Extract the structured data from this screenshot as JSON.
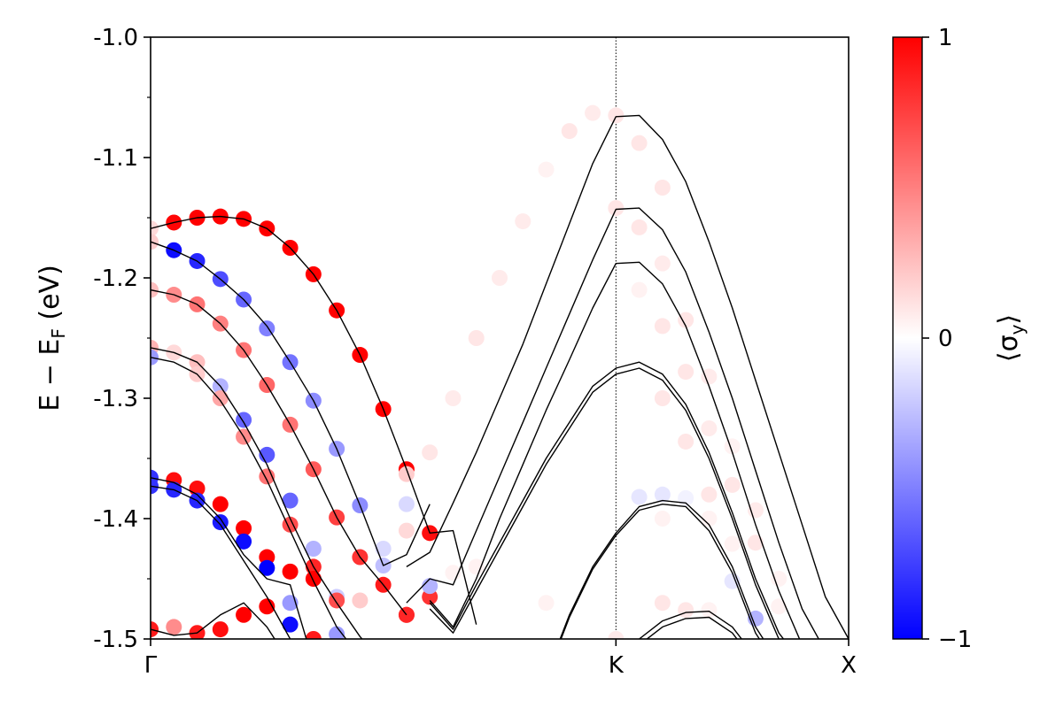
{
  "chart_data": {
    "type": "scatter",
    "ylabel": "E − E_F (eV)",
    "ylabel_main": "E − E",
    "ylabel_sub": "F",
    "ylabel_unit": " (eV)",
    "ylim": [
      -1.5,
      -1.0
    ],
    "xlim": [
      0,
      30
    ],
    "yticks": [
      -1.0,
      -1.1,
      -1.2,
      -1.3,
      -1.4,
      -1.5
    ],
    "ytick_labels": [
      "-1.0",
      "-1.1",
      "-1.2",
      "-1.3",
      "-1.4",
      "-1.5"
    ],
    "xticks": [
      {
        "label": "Γ",
        "x": 0
      },
      {
        "label": "K",
        "x": 20
      },
      {
        "label": "X",
        "x": 30
      }
    ],
    "kpoint_line_x": 20,
    "colorbar": {
      "label": "⟨σ_y⟩",
      "label_text": "⟨σ",
      "label_sub": "y",
      "label_close": "⟩",
      "min": -1,
      "max": 1,
      "ticks": [
        {
          "value": 1,
          "label": "1"
        },
        {
          "value": 0,
          "label": "0"
        },
        {
          "value": -1,
          "label": "−1"
        }
      ],
      "colors": {
        "negative": "#0000ff",
        "zero": "#ffffff",
        "positive": "#ff0000"
      }
    },
    "bands": [
      {
        "x": [
          0,
          1,
          2,
          3,
          4,
          5,
          6,
          7,
          8,
          9,
          10,
          11,
          12,
          13,
          14
        ],
        "y": [
          -1.159,
          -1.154,
          -1.15,
          -1.149,
          -1.151,
          -1.159,
          -1.175,
          -1.197,
          -1.227,
          -1.264,
          -1.309,
          -1.359,
          -1.412,
          -1.41,
          -1.488
        ]
      },
      {
        "x": [
          0,
          1,
          2,
          3,
          4,
          5,
          6,
          7,
          8,
          9,
          10,
          11,
          12
        ],
        "y": [
          -1.17,
          -1.177,
          -1.186,
          -1.201,
          -1.218,
          -1.24,
          -1.27,
          -1.302,
          -1.342,
          -1.389,
          -1.439,
          -1.43,
          -1.388
        ]
      },
      {
        "x": [
          0,
          1,
          2,
          3,
          4,
          5,
          6,
          7,
          8,
          9,
          10,
          11
        ],
        "y": [
          -1.21,
          -1.214,
          -1.222,
          -1.238,
          -1.26,
          -1.289,
          -1.322,
          -1.359,
          -1.399,
          -1.432,
          -1.455,
          -1.48
        ]
      },
      {
        "x": [
          0,
          1,
          2,
          3,
          4,
          5,
          6,
          7,
          8,
          9,
          10
        ],
        "y": [
          -1.258,
          -1.262,
          -1.27,
          -1.29,
          -1.32,
          -1.355,
          -1.4,
          -1.44,
          -1.47,
          -1.498,
          -1.52
        ]
      },
      {
        "x": [
          0,
          1,
          2,
          3,
          4,
          5,
          6,
          7,
          8,
          9,
          10
        ],
        "y": [
          -1.266,
          -1.27,
          -1.28,
          -1.302,
          -1.332,
          -1.368,
          -1.41,
          -1.452,
          -1.49,
          -1.515,
          -1.53
        ]
      },
      {
        "x": [
          0,
          1,
          2,
          3,
          4,
          5,
          6,
          7
        ],
        "y": [
          -1.366,
          -1.37,
          -1.38,
          -1.4,
          -1.43,
          -1.45,
          -1.455,
          -1.52
        ]
      },
      {
        "x": [
          0,
          1,
          2,
          3,
          4,
          5,
          6
        ],
        "y": [
          -1.373,
          -1.376,
          -1.385,
          -1.405,
          -1.435,
          -1.465,
          -1.5
        ]
      },
      {
        "x": [
          0,
          1,
          2,
          3,
          4,
          5,
          6
        ],
        "y": [
          -1.492,
          -1.497,
          -1.495,
          -1.48,
          -1.47,
          -1.49,
          -1.52
        ]
      },
      {
        "x": [
          0,
          1,
          2,
          3
        ],
        "y": [
          -1.5,
          -1.505,
          -1.515,
          -1.525
        ]
      },
      {
        "x": [
          11,
          12,
          13,
          14,
          15,
          16,
          17,
          18,
          19,
          20,
          21,
          22,
          23,
          24,
          25,
          26,
          27,
          28,
          29,
          30
        ],
        "y": [
          -1.44,
          -1.428,
          -1.387,
          -1.345,
          -1.3,
          -1.255,
          -1.205,
          -1.155,
          -1.105,
          -1.066,
          -1.065,
          -1.085,
          -1.12,
          -1.17,
          -1.225,
          -1.285,
          -1.345,
          -1.405,
          -1.465,
          -1.5
        ]
      },
      {
        "x": [
          11,
          12,
          13,
          14,
          15,
          16,
          17,
          18,
          19,
          20,
          21,
          22,
          23,
          24,
          25,
          26,
          27,
          28,
          29,
          30
        ],
        "y": [
          -1.47,
          -1.45,
          -1.455,
          -1.41,
          -1.365,
          -1.32,
          -1.275,
          -1.23,
          -1.185,
          -1.143,
          -1.142,
          -1.16,
          -1.195,
          -1.245,
          -1.3,
          -1.36,
          -1.42,
          -1.475,
          -1.51,
          -1.53
        ]
      },
      {
        "x": [
          12,
          13,
          14,
          15,
          16,
          17,
          18,
          19,
          20,
          21,
          22,
          23,
          24,
          25,
          26,
          27,
          28,
          29,
          30
        ],
        "y": [
          -1.468,
          -1.49,
          -1.45,
          -1.4,
          -1.355,
          -1.31,
          -1.268,
          -1.225,
          -1.188,
          -1.187,
          -1.205,
          -1.24,
          -1.29,
          -1.345,
          -1.405,
          -1.46,
          -1.505,
          -1.53,
          -1.54
        ]
      },
      {
        "x": [
          12,
          13,
          14,
          15,
          16,
          17,
          18,
          19,
          20,
          21,
          22,
          23,
          24,
          25,
          26,
          27,
          28,
          29,
          30
        ],
        "y": [
          -1.47,
          -1.492,
          -1.455,
          -1.42,
          -1.385,
          -1.35,
          -1.32,
          -1.29,
          -1.275,
          -1.27,
          -1.28,
          -1.305,
          -1.345,
          -1.395,
          -1.45,
          -1.495,
          -1.52,
          -1.54,
          -1.55
        ]
      },
      {
        "x": [
          12,
          13,
          14,
          15,
          16,
          17,
          18,
          19,
          20,
          21,
          22,
          23,
          24,
          25,
          26,
          27,
          28,
          29,
          30
        ],
        "y": [
          -1.475,
          -1.495,
          -1.46,
          -1.425,
          -1.39,
          -1.355,
          -1.325,
          -1.295,
          -1.28,
          -1.275,
          -1.285,
          -1.31,
          -1.35,
          -1.4,
          -1.455,
          -1.5,
          -1.525,
          -1.545,
          -1.555
        ]
      },
      {
        "x": [
          17,
          18,
          19,
          20,
          21,
          22,
          23,
          24,
          25,
          26,
          27,
          28
        ],
        "y": [
          -1.53,
          -1.48,
          -1.44,
          -1.412,
          -1.39,
          -1.385,
          -1.387,
          -1.405,
          -1.44,
          -1.49,
          -1.52,
          -1.54
        ]
      },
      {
        "x": [
          17,
          18,
          19,
          20,
          21,
          22,
          23,
          24,
          25,
          26,
          27,
          28
        ],
        "y": [
          -1.532,
          -1.482,
          -1.442,
          -1.414,
          -1.393,
          -1.388,
          -1.39,
          -1.41,
          -1.445,
          -1.495,
          -1.525,
          -1.545
        ]
      },
      {
        "x": [
          21,
          22,
          23,
          24,
          25,
          26,
          27
        ],
        "y": [
          -1.5,
          -1.485,
          -1.478,
          -1.477,
          -1.49,
          -1.515,
          -1.53
        ]
      },
      {
        "x": [
          21,
          22,
          23,
          24,
          25,
          26,
          27
        ],
        "y": [
          -1.505,
          -1.49,
          -1.483,
          -1.482,
          -1.495,
          -1.52,
          -1.535
        ]
      },
      {
        "x": [
          7,
          8,
          9,
          10
        ],
        "y": [
          -1.5,
          -1.53,
          -1.54,
          -1.545
        ]
      }
    ],
    "points": [
      {
        "x": 0,
        "y": -1.159,
        "s": 0.15
      },
      {
        "x": 1,
        "y": -1.154,
        "s": 0.98
      },
      {
        "x": 2,
        "y": -1.15,
        "s": 1.0
      },
      {
        "x": 3,
        "y": -1.149,
        "s": 1.0
      },
      {
        "x": 4,
        "y": -1.151,
        "s": 1.0
      },
      {
        "x": 5,
        "y": -1.159,
        "s": 1.0
      },
      {
        "x": 6,
        "y": -1.175,
        "s": 1.0
      },
      {
        "x": 7,
        "y": -1.197,
        "s": 1.0
      },
      {
        "x": 8,
        "y": -1.227,
        "s": 1.0
      },
      {
        "x": 9,
        "y": -1.264,
        "s": 1.0
      },
      {
        "x": 10,
        "y": -1.309,
        "s": 1.0
      },
      {
        "x": 11,
        "y": -1.359,
        "s": 1.0
      },
      {
        "x": 12,
        "y": -1.412,
        "s": 0.95
      },
      {
        "x": 0,
        "y": -1.17,
        "s": 0.2
      },
      {
        "x": 1,
        "y": -1.177,
        "s": -0.95
      },
      {
        "x": 2,
        "y": -1.186,
        "s": -0.85
      },
      {
        "x": 3,
        "y": -1.201,
        "s": -0.7
      },
      {
        "x": 4,
        "y": -1.218,
        "s": -0.6
      },
      {
        "x": 5,
        "y": -1.242,
        "s": -0.5
      },
      {
        "x": 6,
        "y": -1.27,
        "s": -0.55
      },
      {
        "x": 7,
        "y": -1.302,
        "s": -0.45
      },
      {
        "x": 8,
        "y": -1.342,
        "s": -0.4
      },
      {
        "x": 9,
        "y": -1.389,
        "s": -0.45
      },
      {
        "x": 10,
        "y": -1.439,
        "s": -0.25
      },
      {
        "x": 11,
        "y": -1.388,
        "s": -0.15
      },
      {
        "x": 0,
        "y": -1.21,
        "s": 0.25
      },
      {
        "x": 1,
        "y": -1.214,
        "s": 0.45
      },
      {
        "x": 2,
        "y": -1.222,
        "s": 0.55
      },
      {
        "x": 3,
        "y": -1.238,
        "s": 0.5
      },
      {
        "x": 4,
        "y": -1.26,
        "s": 0.55
      },
      {
        "x": 5,
        "y": -1.289,
        "s": 0.6
      },
      {
        "x": 6,
        "y": -1.322,
        "s": 0.55
      },
      {
        "x": 7,
        "y": -1.359,
        "s": 0.65
      },
      {
        "x": 8,
        "y": -1.399,
        "s": 0.75
      },
      {
        "x": 9,
        "y": -1.432,
        "s": 0.8
      },
      {
        "x": 10,
        "y": -1.455,
        "s": 0.9
      },
      {
        "x": 11,
        "y": -1.48,
        "s": 0.9
      },
      {
        "x": 0,
        "y": -1.258,
        "s": 0.3
      },
      {
        "x": 0,
        "y": -1.266,
        "s": -0.4
      },
      {
        "x": 1,
        "y": -1.262,
        "s": 0.15
      },
      {
        "x": 2,
        "y": -1.27,
        "s": 0.25
      },
      {
        "x": 3,
        "y": -1.29,
        "s": -0.3
      },
      {
        "x": 4,
        "y": -1.318,
        "s": -0.6
      },
      {
        "x": 5,
        "y": -1.347,
        "s": -0.65
      },
      {
        "x": 6,
        "y": -1.385,
        "s": -0.6
      },
      {
        "x": 7,
        "y": -1.425,
        "s": -0.3
      },
      {
        "x": 8,
        "y": -1.465,
        "s": -0.2
      },
      {
        "x": 2,
        "y": -1.28,
        "s": 0.2
      },
      {
        "x": 3,
        "y": -1.3,
        "s": 0.35
      },
      {
        "x": 4,
        "y": -1.332,
        "s": 0.45
      },
      {
        "x": 5,
        "y": -1.365,
        "s": 0.55
      },
      {
        "x": 6,
        "y": -1.405,
        "s": 0.7
      },
      {
        "x": 7,
        "y": -1.44,
        "s": 0.85
      },
      {
        "x": 8,
        "y": -1.468,
        "s": 0.7
      },
      {
        "x": 0,
        "y": -1.366,
        "s": -0.8
      },
      {
        "x": 1,
        "y": -1.368,
        "s": 0.95
      },
      {
        "x": 2,
        "y": -1.375,
        "s": 0.95
      },
      {
        "x": 3,
        "y": -1.388,
        "s": 1.0
      },
      {
        "x": 4,
        "y": -1.408,
        "s": 1.0
      },
      {
        "x": 5,
        "y": -1.432,
        "s": 1.0
      },
      {
        "x": 6,
        "y": -1.444,
        "s": 1.0
      },
      {
        "x": 7,
        "y": -1.45,
        "s": 1.0
      },
      {
        "x": 0,
        "y": -1.373,
        "s": -0.8
      },
      {
        "x": 1,
        "y": -1.376,
        "s": -0.85
      },
      {
        "x": 2,
        "y": -1.385,
        "s": -0.85
      },
      {
        "x": 3,
        "y": -1.403,
        "s": -0.9
      },
      {
        "x": 4,
        "y": -1.419,
        "s": -0.95
      },
      {
        "x": 5,
        "y": -1.441,
        "s": -1.0
      },
      {
        "x": 6,
        "y": -1.47,
        "s": -0.4
      },
      {
        "x": 0,
        "y": -1.492,
        "s": 0.9
      },
      {
        "x": 1,
        "y": -1.49,
        "s": 0.45
      },
      {
        "x": 2,
        "y": -1.495,
        "s": 0.9
      },
      {
        "x": 3,
        "y": -1.492,
        "s": 0.95
      },
      {
        "x": 4,
        "y": -1.48,
        "s": 1.0
      },
      {
        "x": 5,
        "y": -1.473,
        "s": 1.0
      },
      {
        "x": 6,
        "y": -1.488,
        "s": -0.95
      },
      {
        "x": 7,
        "y": -1.5,
        "s": 0.9
      },
      {
        "x": 8,
        "y": -1.496,
        "s": -0.4
      },
      {
        "x": 9,
        "y": -1.468,
        "s": 0.2
      },
      {
        "x": 11,
        "y": -1.48,
        "s": 0.85
      },
      {
        "x": 12,
        "y": -1.465,
        "s": 0.8
      },
      {
        "x": 12,
        "y": -1.456,
        "s": -0.3
      },
      {
        "x": 11,
        "y": -1.363,
        "s": 0.2
      },
      {
        "x": 12,
        "y": -1.345,
        "s": 0.1
      },
      {
        "x": 11,
        "y": -1.41,
        "s": 0.15
      },
      {
        "x": 10,
        "y": -1.425,
        "s": -0.15
      },
      {
        "x": 13,
        "y": -1.3,
        "s": 0.08
      },
      {
        "x": 14,
        "y": -1.25,
        "s": 0.1
      },
      {
        "x": 15,
        "y": -1.2,
        "s": 0.08
      },
      {
        "x": 16,
        "y": -1.153,
        "s": 0.08
      },
      {
        "x": 17,
        "y": -1.11,
        "s": 0.05
      },
      {
        "x": 18,
        "y": -1.078,
        "s": 0.1
      },
      {
        "x": 19,
        "y": -1.063,
        "s": 0.08
      },
      {
        "x": 20,
        "y": -1.065,
        "s": 0.1
      },
      {
        "x": 21,
        "y": -1.088,
        "s": 0.1
      },
      {
        "x": 22,
        "y": -1.125,
        "s": 0.1
      },
      {
        "x": 20,
        "y": -1.142,
        "s": 0.1
      },
      {
        "x": 21,
        "y": -1.158,
        "s": 0.1
      },
      {
        "x": 22,
        "y": -1.188,
        "s": 0.08
      },
      {
        "x": 23,
        "y": -1.235,
        "s": 0.1
      },
      {
        "x": 24,
        "y": -1.282,
        "s": 0.08
      },
      {
        "x": 25,
        "y": -1.34,
        "s": 0.05
      },
      {
        "x": 26,
        "y": -1.393,
        "s": 0.08
      },
      {
        "x": 27,
        "y": -1.45,
        "s": 0.05
      },
      {
        "x": 21,
        "y": -1.21,
        "s": 0.05
      },
      {
        "x": 22,
        "y": -1.24,
        "s": 0.1
      },
      {
        "x": 23,
        "y": -1.278,
        "s": 0.1
      },
      {
        "x": 24,
        "y": -1.325,
        "s": 0.08
      },
      {
        "x": 25,
        "y": -1.372,
        "s": 0.1
      },
      {
        "x": 26,
        "y": -1.42,
        "s": 0.1
      },
      {
        "x": 27,
        "y": -1.473,
        "s": 0.05
      },
      {
        "x": 22,
        "y": -1.3,
        "s": 0.1
      },
      {
        "x": 23,
        "y": -1.336,
        "s": 0.1
      },
      {
        "x": 24,
        "y": -1.38,
        "s": 0.1
      },
      {
        "x": 25,
        "y": -1.421,
        "s": 0.05
      },
      {
        "x": 26,
        "y": -1.483,
        "s": -0.3
      },
      {
        "x": 21,
        "y": -1.382,
        "s": -0.1
      },
      {
        "x": 22,
        "y": -1.38,
        "s": -0.1
      },
      {
        "x": 23,
        "y": -1.383,
        "s": -0.05
      },
      {
        "x": 22,
        "y": -1.4,
        "s": 0.05
      },
      {
        "x": 24,
        "y": -1.4,
        "s": 0.05
      },
      {
        "x": 25,
        "y": -1.452,
        "s": -0.1
      },
      {
        "x": 22,
        "y": -1.47,
        "s": 0.1
      },
      {
        "x": 23,
        "y": -1.476,
        "s": 0.1
      },
      {
        "x": 24,
        "y": -1.476,
        "s": 0.05
      },
      {
        "x": 20,
        "y": -1.5,
        "s": 0.08
      },
      {
        "x": 13,
        "y": -1.445,
        "s": 0.05
      },
      {
        "x": 14,
        "y": -1.44,
        "s": 0.05
      },
      {
        "x": 17,
        "y": -1.47,
        "s": 0.05
      }
    ]
  }
}
